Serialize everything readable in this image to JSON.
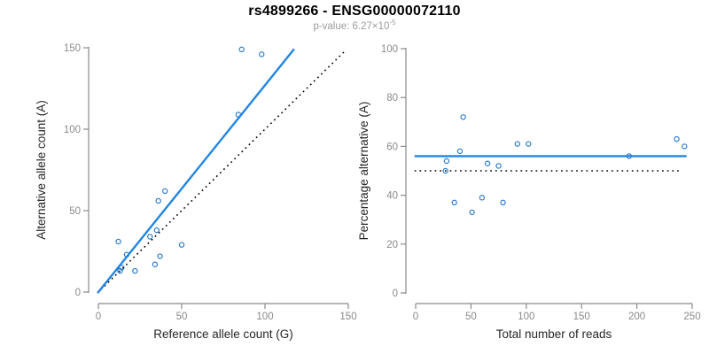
{
  "header": {
    "title": "rs4899266 - ENSG00000072110",
    "subtitle_base": "p-value: 6.27×10",
    "subtitle_exponent": "-5"
  },
  "colors": {
    "line_blue": "#2185E0",
    "point_blue": "#2B7CC9",
    "dotted_black": "#000000",
    "axis_gray": "#8A8A8A",
    "tick_text_gray": "#8A8A8A",
    "axis_label_dark": "#262626",
    "background": "#FFFFFF"
  },
  "chart_data": [
    {
      "type": "scatter",
      "name": "allele-counts-scatter",
      "xlabel": "Reference allele count (G)",
      "ylabel": "Alternative allele count (A)",
      "xlim": [
        0,
        150
      ],
      "ylim": [
        0,
        150
      ],
      "xticks": [
        0,
        50,
        100,
        150
      ],
      "yticks": [
        0,
        50,
        100,
        150
      ],
      "grid": false,
      "legend": null,
      "points": [
        [
          86,
          149
        ],
        [
          98,
          146
        ],
        [
          84,
          109
        ],
        [
          40,
          62
        ],
        [
          36,
          56
        ],
        [
          35,
          38
        ],
        [
          31,
          34
        ],
        [
          12,
          31
        ],
        [
          50,
          29
        ],
        [
          17,
          23
        ],
        [
          37,
          22
        ],
        [
          34,
          17
        ],
        [
          22,
          13
        ],
        [
          14,
          15
        ],
        [
          13,
          13
        ]
      ],
      "lines": [
        {
          "role": "identity-line",
          "slope": 1,
          "intercept": 0,
          "x_start": 1.5,
          "x_end": 148,
          "style": "dotted",
          "color_key": "dotted_black",
          "width": 1.6
        },
        {
          "role": "regression-line",
          "slope": 1.27,
          "intercept": 0,
          "x_start": -0.5,
          "x_end": 117.5,
          "style": "solid",
          "color_key": "line_blue",
          "width": 2.4
        }
      ]
    },
    {
      "type": "scatter",
      "name": "percentage-alternative-scatter",
      "xlabel": "Total number of reads",
      "ylabel": "Percentage alternative (A)",
      "xlim": [
        0,
        250
      ],
      "ylim": [
        0,
        100
      ],
      "xticks": [
        0,
        50,
        100,
        150,
        200,
        250
      ],
      "yticks": [
        0,
        20,
        40,
        60,
        80,
        100
      ],
      "grid": false,
      "legend": null,
      "points": [
        [
          43,
          72
        ],
        [
          40,
          58
        ],
        [
          28,
          54
        ],
        [
          27,
          50
        ],
        [
          65,
          53
        ],
        [
          75,
          52
        ],
        [
          92,
          61
        ],
        [
          102,
          61
        ],
        [
          35,
          37
        ],
        [
          60,
          39
        ],
        [
          51,
          33
        ],
        [
          79,
          37
        ],
        [
          193,
          56
        ],
        [
          236,
          63
        ],
        [
          243,
          60
        ]
      ],
      "lines": [
        {
          "role": "null-expectation-line",
          "slope": 0,
          "intercept": 50,
          "x_start": -1,
          "x_end": 239,
          "style": "dotted",
          "color_key": "dotted_black",
          "width": 1.6
        },
        {
          "role": "mean-percentage-line",
          "slope": 0,
          "intercept": 56,
          "x_start": -1,
          "x_end": 245,
          "style": "solid",
          "color_key": "line_blue",
          "width": 2.4
        }
      ]
    }
  ]
}
